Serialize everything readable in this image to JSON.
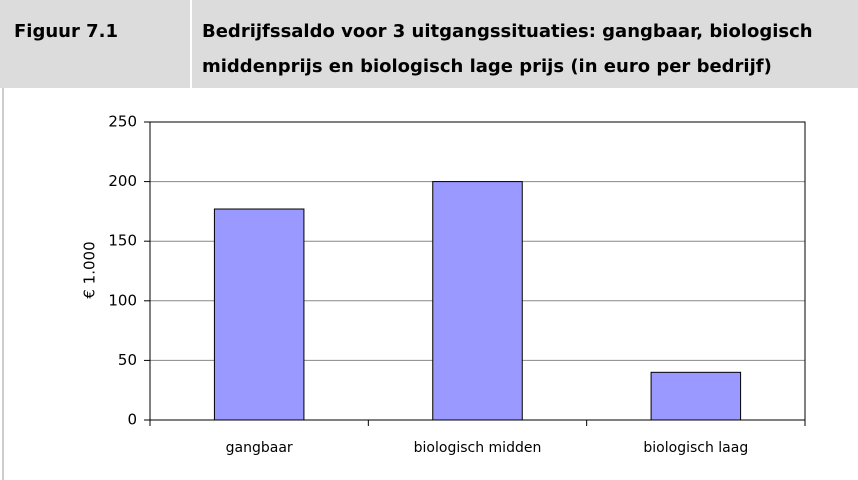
{
  "chart_data": {
    "type": "bar",
    "figure_label": "Figuur 7.1",
    "title": [
      "Bedrijfssaldo voor 3 uitgangssituaties: gangbaar, biologisch",
      "middenprijs en biologisch lage prijs (in euro per bedrijf)"
    ],
    "y_label": "€ 1.000",
    "categories": [
      "gangbaar",
      "biologisch midden",
      "biologisch laag"
    ],
    "values": [
      177,
      200,
      40
    ],
    "color": "#9999ff",
    "ylim": [
      0,
      250
    ],
    "yticks": [
      0,
      50,
      100,
      150,
      200,
      250
    ],
    "grid": true
  }
}
